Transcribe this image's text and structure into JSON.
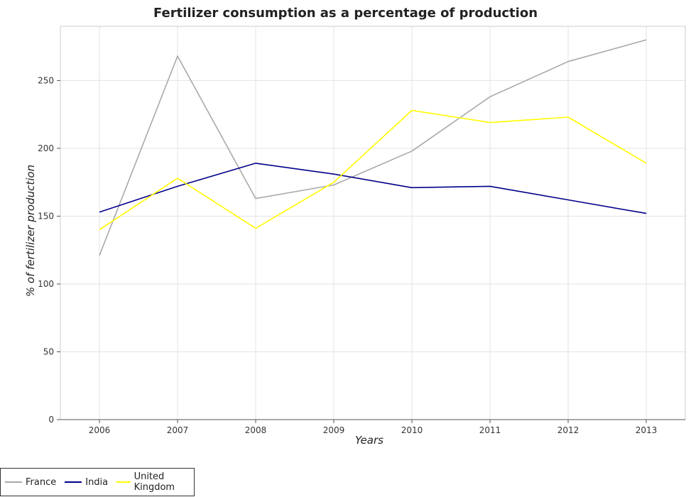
{
  "chart_data": {
    "type": "line",
    "title": "Fertilizer consumption as a percentage of production",
    "xlabel": "Years",
    "ylabel": "% of fertilizer production",
    "categories": [
      "2006",
      "2007",
      "2008",
      "2009",
      "2010",
      "2011",
      "2012",
      "2013"
    ],
    "ylim": [
      0,
      290
    ],
    "yticks": [
      0,
      50,
      100,
      150,
      200,
      250
    ],
    "grid": true,
    "legend_position": "bottom-left",
    "series": [
      {
        "name": "France",
        "color": "#a9a9a9",
        "values": [
          121,
          268,
          163,
          173,
          198,
          238,
          264,
          280
        ]
      },
      {
        "name": "India",
        "color": "#00008b",
        "values": [
          153,
          172,
          189,
          181,
          171,
          172,
          162,
          152
        ]
      },
      {
        "name": "United Kingdom",
        "color": "#ffff00",
        "values": [
          140,
          178,
          141,
          175,
          228,
          219,
          223,
          189
        ]
      }
    ]
  }
}
